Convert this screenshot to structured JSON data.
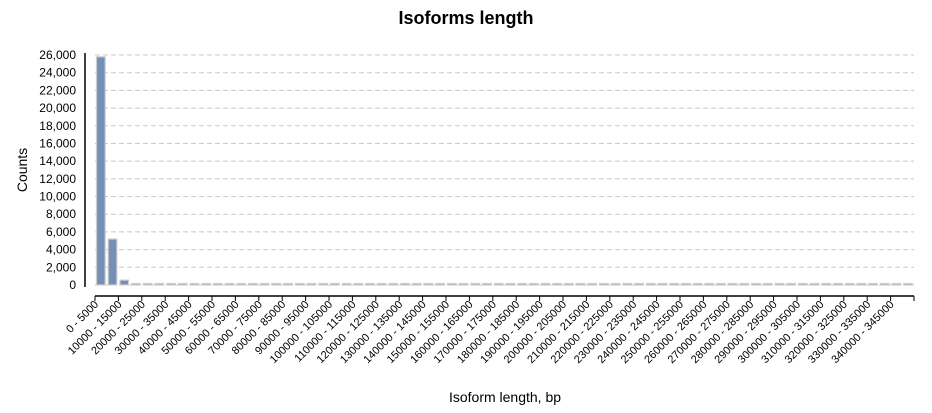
{
  "chart_data": {
    "type": "bar",
    "title": "Isoforms length",
    "xlabel": "Isoform length, bp",
    "ylabel": "Counts",
    "ylim": [
      0,
      26000
    ],
    "yticks": [
      0,
      2000,
      4000,
      6000,
      8000,
      10000,
      12000,
      14000,
      16000,
      18000,
      20000,
      22000,
      24000,
      26000
    ],
    "ytick_labels": [
      "0",
      "2,000",
      "4,000",
      "6,000",
      "8,000",
      "10,000",
      "12,000",
      "14,000",
      "16,000",
      "18,000",
      "20,000",
      "22,000",
      "24,000",
      "26,000"
    ],
    "grid": true,
    "bin_size": 5000,
    "bin_count": 70,
    "values": [
      25800,
      5200,
      550,
      170,
      40,
      30,
      20,
      15,
      10,
      10,
      8,
      6,
      5,
      5,
      4,
      4,
      3,
      3,
      3,
      2,
      2,
      2,
      2,
      2,
      1,
      1,
      1,
      1,
      1,
      1,
      1,
      1,
      1,
      1,
      1,
      1,
      1,
      1,
      1,
      1,
      1,
      1,
      1,
      1,
      1,
      1,
      1,
      1,
      1,
      1,
      1,
      1,
      1,
      1,
      1,
      1,
      1,
      1,
      1,
      1,
      1,
      1,
      1,
      1,
      1,
      1,
      1,
      1,
      1,
      1
    ],
    "bar_color": "#7590b8",
    "bar_border": "#cfcfcf",
    "grid_color": "#c8c8c8"
  }
}
